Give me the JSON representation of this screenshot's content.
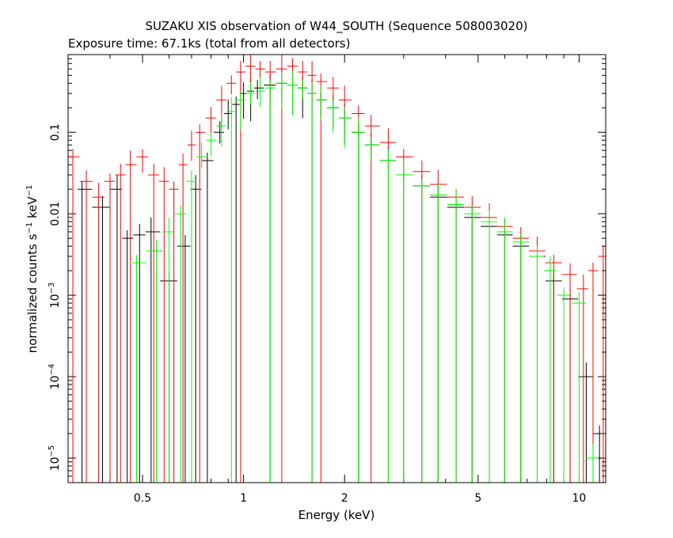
{
  "chart_data": {
    "type": "scatter",
    "title": "SUZAKU XIS observation of W44_SOUTH (Sequence 508003020)",
    "subtitle": "Exposure time: 67.1ks (total from all detectors)",
    "xlabel": "Energy (keV)",
    "ylabel_main": "normalized counts s",
    "ylabel_sup1": "−1",
    "ylabel_mid": " keV",
    "ylabel_sup2": "−1",
    "x_scale": "log",
    "y_scale": "log",
    "xlim": [
      0.3,
      12
    ],
    "ylim": [
      5e-06,
      0.9
    ],
    "grid": false,
    "x_ticks": [
      {
        "v": 0.5,
        "label": "0.5"
      },
      {
        "v": 1,
        "label": "1"
      },
      {
        "v": 2,
        "label": "2"
      },
      {
        "v": 5,
        "label": "5"
      },
      {
        "v": 10,
        "label": "10"
      }
    ],
    "y_ticks": [
      {
        "v": 0.1,
        "base": "0.1",
        "exp": ""
      },
      {
        "v": 0.01,
        "base": "0.01",
        "exp": ""
      },
      {
        "v": 0.001,
        "base": "10",
        "exp": "−3"
      },
      {
        "v": 0.0001,
        "base": "10",
        "exp": "−4"
      },
      {
        "v": 1e-05,
        "base": "10",
        "exp": "−5"
      }
    ],
    "series_colors": [
      "#000000",
      "#ff0000",
      "#00ff00"
    ],
    "series": [
      {
        "color": "#000000",
        "points": [
          [
            0.33,
            0.02
          ],
          [
            0.38,
            0.012
          ],
          [
            0.42,
            0.02
          ],
          [
            0.45,
            0.005
          ],
          [
            0.49,
            0.0055
          ],
          [
            0.53,
            0.006
          ],
          [
            0.6,
            0.0015
          ],
          [
            0.67,
            0.004
          ],
          [
            0.72,
            0.02
          ],
          [
            0.78,
            0.045
          ],
          [
            0.85,
            0.1
          ],
          [
            0.9,
            0.17
          ],
          [
            0.95,
            0.22
          ],
          [
            1.0,
            0.3
          ],
          [
            1.05,
            0.32
          ],
          [
            1.1,
            0.35
          ],
          [
            1.2,
            0.38
          ],
          [
            1.3,
            0.4
          ],
          [
            1.4,
            0.38
          ],
          [
            1.5,
            0.35
          ],
          [
            1.6,
            0.3
          ],
          [
            1.7,
            0.25
          ],
          [
            1.85,
            0.2
          ],
          [
            2.0,
            0.15
          ],
          [
            2.2,
            0.1
          ],
          [
            2.4,
            0.07
          ],
          [
            2.7,
            0.045
          ],
          [
            3.0,
            0.03
          ],
          [
            3.4,
            0.022
          ],
          [
            3.8,
            0.016
          ],
          [
            4.3,
            0.012
          ],
          [
            4.8,
            0.009
          ],
          [
            5.4,
            0.007
          ],
          [
            6.0,
            0.0055
          ],
          [
            6.7,
            0.004
          ],
          [
            7.5,
            0.003
          ],
          [
            8.4,
            0.0015
          ],
          [
            9.4,
            0.0009
          ],
          [
            10.5,
            0.0001
          ],
          [
            11.5,
            2e-05
          ]
        ]
      },
      {
        "color": "#ff0000",
        "points": [
          [
            0.31,
            0.05
          ],
          [
            0.34,
            0.025
          ],
          [
            0.37,
            0.016
          ],
          [
            0.4,
            0.025
          ],
          [
            0.43,
            0.03
          ],
          [
            0.46,
            0.04
          ],
          [
            0.5,
            0.05
          ],
          [
            0.54,
            0.03
          ],
          [
            0.58,
            0.025
          ],
          [
            0.62,
            0.02
          ],
          [
            0.66,
            0.04
          ],
          [
            0.7,
            0.07
          ],
          [
            0.74,
            0.1
          ],
          [
            0.8,
            0.15
          ],
          [
            0.86,
            0.25
          ],
          [
            0.92,
            0.4
          ],
          [
            0.98,
            0.55
          ],
          [
            1.05,
            0.65
          ],
          [
            1.12,
            0.6
          ],
          [
            1.2,
            0.55
          ],
          [
            1.3,
            0.6
          ],
          [
            1.4,
            0.65
          ],
          [
            1.5,
            0.55
          ],
          [
            1.6,
            0.5
          ],
          [
            1.7,
            0.42
          ],
          [
            1.85,
            0.35
          ],
          [
            2.0,
            0.25
          ],
          [
            2.2,
            0.17
          ],
          [
            2.4,
            0.12
          ],
          [
            2.7,
            0.075
          ],
          [
            3.0,
            0.05
          ],
          [
            3.4,
            0.033
          ],
          [
            3.8,
            0.023
          ],
          [
            4.3,
            0.016
          ],
          [
            4.8,
            0.012
          ],
          [
            5.4,
            0.009
          ],
          [
            6.0,
            0.007
          ],
          [
            6.7,
            0.005
          ],
          [
            7.5,
            0.0035
          ],
          [
            8.4,
            0.0025
          ],
          [
            9.4,
            0.0018
          ],
          [
            10.3,
            0.0012
          ],
          [
            11.0,
            0.002
          ],
          [
            11.8,
            0.003
          ]
        ]
      },
      {
        "color": "#00ff00",
        "points": [
          [
            0.48,
            0.0025
          ],
          [
            0.55,
            0.0035
          ],
          [
            0.6,
            0.006
          ],
          [
            0.65,
            0.01
          ],
          [
            0.7,
            0.025
          ],
          [
            0.75,
            0.05
          ],
          [
            0.8,
            0.08
          ],
          [
            0.86,
            0.12
          ],
          [
            0.92,
            0.18
          ],
          [
            0.98,
            0.25
          ],
          [
            1.05,
            0.3
          ],
          [
            1.12,
            0.32
          ],
          [
            1.2,
            0.35
          ],
          [
            1.3,
            0.4
          ],
          [
            1.4,
            0.38
          ],
          [
            1.5,
            0.35
          ],
          [
            1.6,
            0.3
          ],
          [
            1.7,
            0.25
          ],
          [
            1.85,
            0.2
          ],
          [
            2.0,
            0.15
          ],
          [
            2.2,
            0.1
          ],
          [
            2.4,
            0.07
          ],
          [
            2.7,
            0.045
          ],
          [
            3.0,
            0.03
          ],
          [
            3.4,
            0.022
          ],
          [
            3.8,
            0.017
          ],
          [
            4.3,
            0.013
          ],
          [
            4.8,
            0.01
          ],
          [
            5.4,
            0.008
          ],
          [
            6.0,
            0.006
          ],
          [
            6.7,
            0.0045
          ],
          [
            7.5,
            0.003
          ],
          [
            8.2,
            0.002
          ],
          [
            9.0,
            0.001
          ],
          [
            10.0,
            0.0008
          ],
          [
            11.0,
            1e-05
          ]
        ]
      }
    ]
  }
}
